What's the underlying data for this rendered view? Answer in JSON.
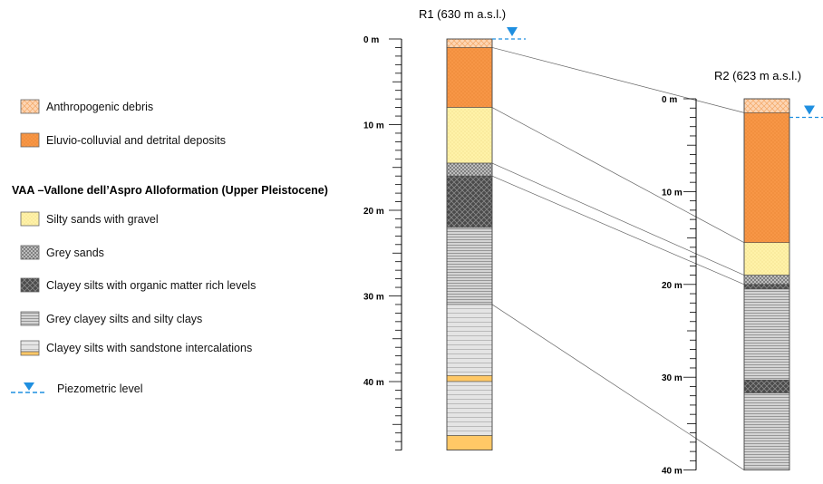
{
  "legend": {
    "items_top": [
      {
        "key": "anthropogenic",
        "label": "Anthropogenic debris"
      },
      {
        "key": "eluvio",
        "label": "Eluvio-colluvial and detrital deposits"
      }
    ],
    "heading": "VAA –Vallone dell’Aspro Alloformation (Upper Pleistocene)",
    "items_vaa": [
      {
        "key": "silty_sands",
        "label": "Silty sands with gravel"
      },
      {
        "key": "grey_sands",
        "label": "Grey sands"
      },
      {
        "key": "organic_silts",
        "label": "Clayey silts with organic matter rich levels"
      },
      {
        "key": "grey_clayey",
        "label": "Grey clayey silts and silty clays"
      },
      {
        "key": "sandstone",
        "label": "Clayey silts with sandstone intercalations"
      }
    ],
    "piezometric_label": "Piezometric level"
  },
  "columns": [
    {
      "id": "R1",
      "title": "R1 (630 m a.s.l.)",
      "depth_labels": [
        "0 m",
        "10 m",
        "20 m",
        "30 m",
        "40 m"
      ],
      "max_depth_m": 48,
      "water_level_m": 0,
      "layers": [
        {
          "top": 0,
          "bottom": 1,
          "unit": "anthropogenic"
        },
        {
          "top": 1,
          "bottom": 8,
          "unit": "eluvio"
        },
        {
          "top": 8,
          "bottom": 14.5,
          "unit": "silty_sands"
        },
        {
          "top": 14.5,
          "bottom": 16,
          "unit": "grey_sands"
        },
        {
          "top": 16,
          "bottom": 22,
          "unit": "organic_silts"
        },
        {
          "top": 22,
          "bottom": 31,
          "unit": "grey_clayey"
        },
        {
          "top": 31,
          "bottom": 39.3,
          "unit": "sandstone"
        },
        {
          "top": 39.3,
          "bottom": 40,
          "unit": "sandstone_band"
        },
        {
          "top": 40,
          "bottom": 46.3,
          "unit": "sandstone"
        },
        {
          "top": 46.3,
          "bottom": 48,
          "unit": "sandstone_band"
        }
      ]
    },
    {
      "id": "R2",
      "title": "R2 (623 m a.s.l.)",
      "depth_labels": [
        "0 m",
        "10 m",
        "20 m",
        "30 m",
        "40 m"
      ],
      "max_depth_m": 40,
      "water_level_m": 2,
      "layers": [
        {
          "top": 0,
          "bottom": 1.5,
          "unit": "anthropogenic"
        },
        {
          "top": 1.5,
          "bottom": 15.5,
          "unit": "eluvio"
        },
        {
          "top": 15.5,
          "bottom": 19,
          "unit": "silty_sands"
        },
        {
          "top": 19,
          "bottom": 20,
          "unit": "grey_sands"
        },
        {
          "top": 20,
          "bottom": 20.5,
          "unit": "organic_silts"
        },
        {
          "top": 20.5,
          "bottom": 30.3,
          "unit": "grey_clayey"
        },
        {
          "top": 30.3,
          "bottom": 31.7,
          "unit": "organic_silts"
        },
        {
          "top": 31.7,
          "bottom": 40,
          "unit": "grey_clayey"
        }
      ]
    }
  ],
  "correlations": [
    {
      "r1_m": 1,
      "r2_m": 1.5
    },
    {
      "r1_m": 8,
      "r2_m": 15.5
    },
    {
      "r1_m": 14.5,
      "r2_m": 19
    },
    {
      "r1_m": 16,
      "r2_m": 20
    },
    {
      "r1_m": 31,
      "r2_m": 40
    }
  ],
  "colors": {
    "anthropogenic": "#fcd5b4",
    "eluvio": "#f79646",
    "silty_sands": "#fff2a8",
    "grey_sands": "#b5b5b5",
    "organic_silts": "#555555",
    "grey_clayey": "#d0d0d0",
    "sandstone": "#dedede",
    "sandstone_band": "#ffc866",
    "water": "#1f8fe0"
  }
}
